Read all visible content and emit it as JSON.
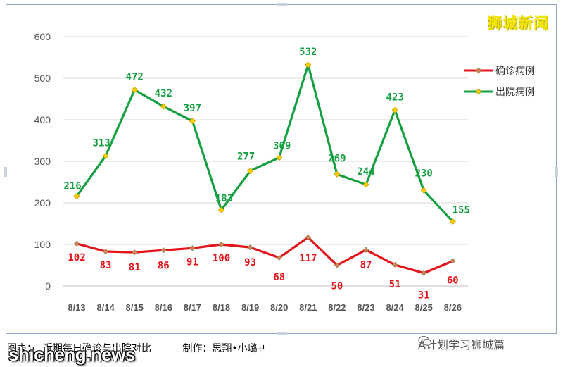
{
  "watermark": "狮城新闻",
  "caption": "图表：  近期每日确诊与出院对比          制作：思翔•小璐↵",
  "wechat_account": "A计划学习狮城篇",
  "site_mark": "shicheng.news",
  "colors": {
    "confirmed": "#e3141b",
    "discharged": "#14a040",
    "marker": "#f7d000",
    "confirmed_marker": "#c8885a",
    "grid": "#d9d9d9"
  },
  "chart_data": {
    "type": "line",
    "categories": [
      "8/13",
      "8/14",
      "8/15",
      "8/16",
      "8/17",
      "8/18",
      "8/19",
      "8/20",
      "8/21",
      "8/22",
      "8/23",
      "8/24",
      "8/25",
      "8/26"
    ],
    "series": [
      {
        "name": "确诊病例",
        "values": [
          102,
          83,
          81,
          86,
          91,
          100,
          93,
          68,
          117,
          50,
          87,
          51,
          31,
          60
        ]
      },
      {
        "name": "出院病例",
        "values": [
          216,
          313,
          472,
          432,
          397,
          183,
          277,
          309,
          532,
          269,
          244,
          423,
          230,
          155
        ]
      }
    ],
    "y_ticks": [
      "0",
      "100",
      "200",
      "300",
      "400",
      "500",
      "600"
    ],
    "ylim": [
      0,
      600
    ],
    "grid": true,
    "legend_position": "right"
  }
}
